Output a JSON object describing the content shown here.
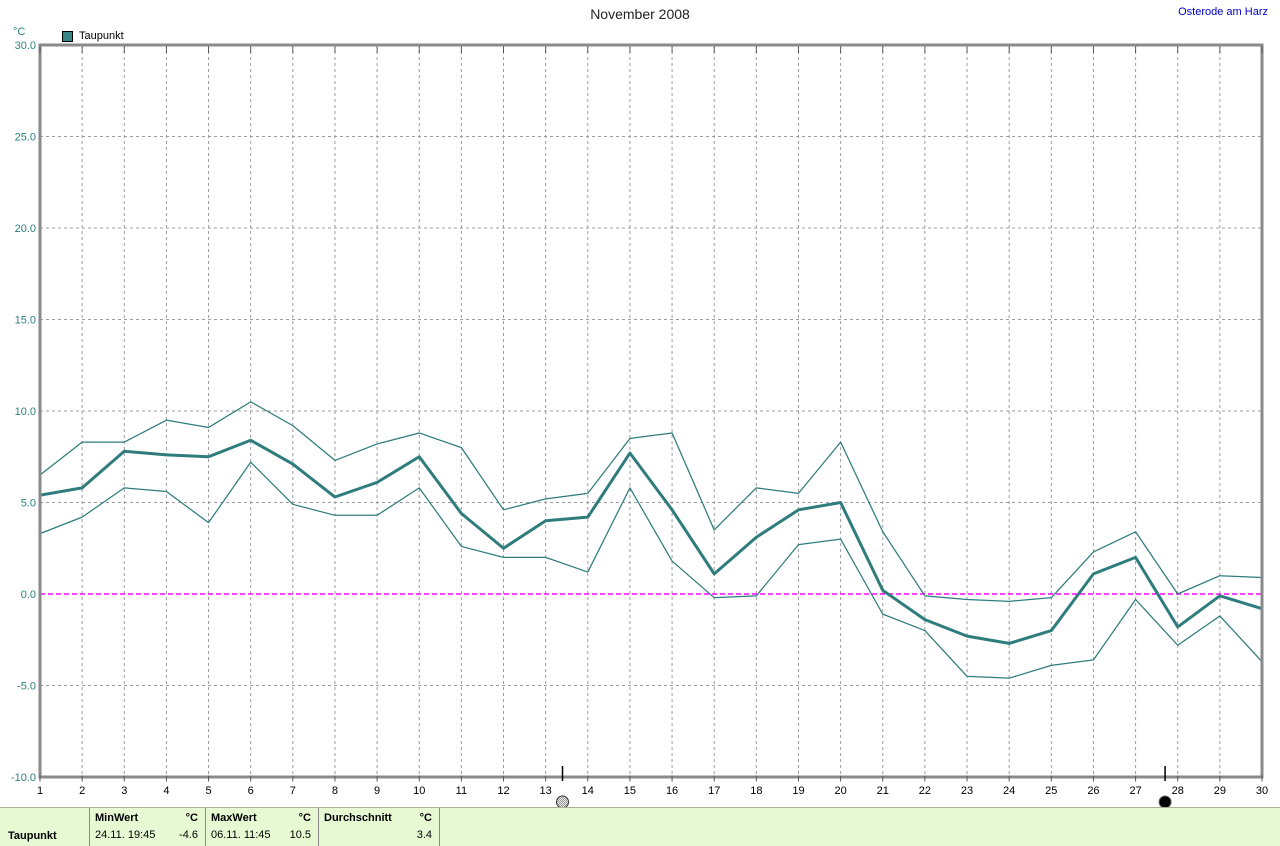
{
  "header": {
    "title": "November 2008",
    "station": "Osterode am Harz"
  },
  "legend": {
    "label": "Taupunkt"
  },
  "y_axis": {
    "unit": "°C",
    "tick_labels": [
      "30.0",
      "25.0",
      "20.0",
      "15.0",
      "10.0",
      "5.0",
      "0.0",
      "-5.0",
      "-10.0"
    ],
    "tick_values": [
      30,
      25,
      20,
      15,
      10,
      5,
      0,
      -5,
      -10
    ]
  },
  "x_axis": {
    "tick_labels": [
      "1",
      "2",
      "3",
      "4",
      "5",
      "6",
      "7",
      "8",
      "9",
      "10",
      "11",
      "12",
      "13",
      "14",
      "15",
      "16",
      "17",
      "18",
      "19",
      "20",
      "21",
      "22",
      "23",
      "24",
      "25",
      "26",
      "27",
      "28",
      "29",
      "30"
    ]
  },
  "chart_data": {
    "type": "line",
    "title": "November 2008",
    "station": "Osterode am Harz",
    "xlabel": "",
    "ylabel": "°C",
    "ylim": [
      -10,
      30
    ],
    "x": [
      1,
      2,
      3,
      4,
      5,
      6,
      7,
      8,
      9,
      10,
      11,
      12,
      13,
      14,
      15,
      16,
      17,
      18,
      19,
      20,
      21,
      22,
      23,
      24,
      25,
      26,
      27,
      28,
      29,
      30
    ],
    "grid": "dashed",
    "zero_line": {
      "value": 0,
      "color": "#ff00ff"
    },
    "series": [
      {
        "name": "Taupunkt Maximum",
        "role": "max",
        "style": "thin",
        "values": [
          6.5,
          8.3,
          8.3,
          9.5,
          9.1,
          10.5,
          9.2,
          7.3,
          8.2,
          8.8,
          8.0,
          4.6,
          5.2,
          5.5,
          8.5,
          8.8,
          3.5,
          5.8,
          5.5,
          8.3,
          3.4,
          -0.1,
          -0.3,
          -0.4,
          -0.2,
          2.3,
          3.4,
          0.0,
          1.0,
          0.9
        ]
      },
      {
        "name": "Taupunkt Mittel",
        "role": "mean",
        "style": "thick",
        "values": [
          5.4,
          5.8,
          7.8,
          7.6,
          7.5,
          8.4,
          7.1,
          5.3,
          6.1,
          7.5,
          4.4,
          2.5,
          4.0,
          4.2,
          7.7,
          4.6,
          1.1,
          3.1,
          4.6,
          5.0,
          0.2,
          -1.4,
          -2.3,
          -2.7,
          -2.0,
          1.1,
          2.0,
          -1.8,
          -0.1,
          -0.8
        ]
      },
      {
        "name": "Taupunkt Minimum",
        "role": "min",
        "style": "thin",
        "values": [
          3.3,
          4.2,
          5.8,
          5.6,
          3.9,
          7.2,
          4.9,
          4.3,
          4.3,
          5.8,
          2.6,
          2.0,
          2.0,
          1.2,
          5.8,
          1.8,
          -0.2,
          -0.1,
          2.7,
          3.0,
          -1.1,
          -2.0,
          -4.5,
          -4.6,
          -3.9,
          -3.6,
          -0.3,
          -2.8,
          -1.2,
          -3.7
        ]
      }
    ],
    "moon_markers": [
      {
        "day": 13.4,
        "phase": "full-moon"
      },
      {
        "day": 27.7,
        "phase": "new-moon"
      }
    ]
  },
  "footer": {
    "row_label": "Taupunkt",
    "min": {
      "header": "MinWert",
      "unit": "°C",
      "timestamp": "24.11.  19:45",
      "value": "-4.6"
    },
    "max": {
      "header": "MaxWert",
      "unit": "°C",
      "timestamp": "06.11.  11:45",
      "value": "10.5"
    },
    "avg": {
      "header": "Durchschnitt",
      "unit": "°C",
      "value": "3.4"
    }
  },
  "colors": {
    "series": "#2f7c7c",
    "zero_line": "#ff00ff",
    "grid": "#9c9c9c",
    "frame": "#8a8a8a",
    "axis_text": "#2e7f7f",
    "tick_text": "#000000",
    "station_text": "#0000cc",
    "footer_bg": "#e6f9d2"
  }
}
